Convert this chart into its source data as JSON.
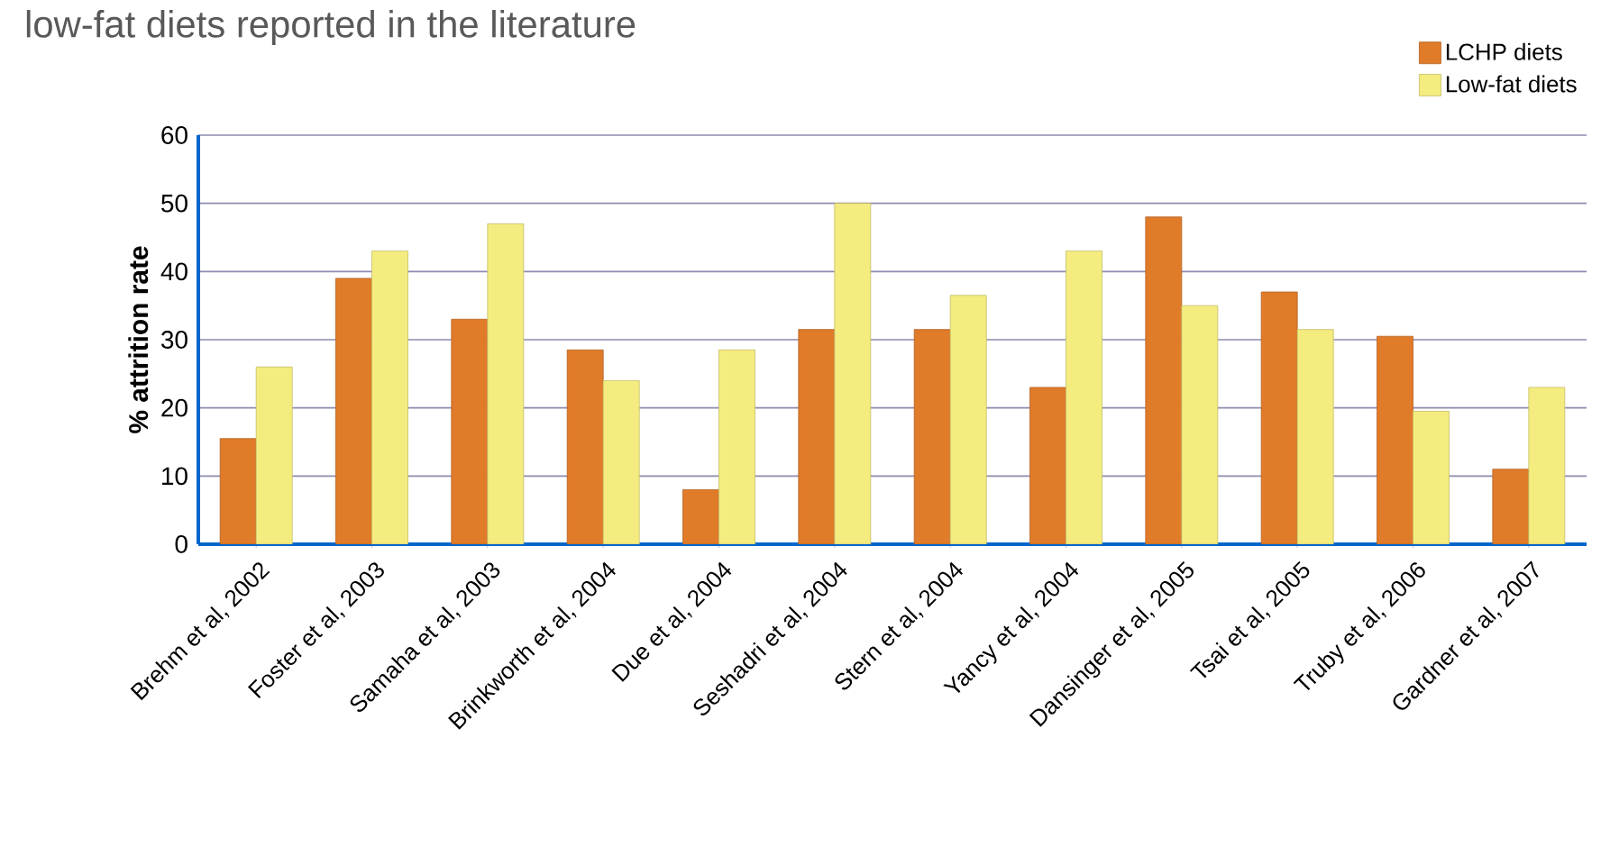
{
  "chart_data": {
    "type": "bar",
    "title": "low-fat diets reported in the literature",
    "ylabel": "% attrition rate",
    "categories": [
      "Brehm et al, 2002",
      "Foster et al, 2003",
      "Samaha et al, 2003",
      "Brinkworth et al, 2004",
      "Due et al, 2004",
      "Seshadri et al, 2004",
      "Stern et al, 2004",
      "Yancy et al, 2004",
      "Dansinger et al, 2005",
      "Tsai et al, 2005",
      "Truby et al, 2006",
      "Gardner et al, 2007"
    ],
    "series": [
      {
        "name": "LCHP diets",
        "color": "#e07b2a",
        "values": [
          15.5,
          39,
          33,
          28.5,
          8,
          31.5,
          31.5,
          23,
          48,
          37,
          30.5,
          11
        ]
      },
      {
        "name": "Low-fat diets",
        "color": "#f5ec80",
        "values": [
          26,
          43,
          47,
          24,
          28.5,
          50,
          36.5,
          43,
          35,
          31.5,
          19.5,
          23
        ]
      }
    ],
    "ylim": [
      0,
      60
    ],
    "yticks": [
      0,
      10,
      20,
      30,
      40,
      50,
      60
    ],
    "grid": "y",
    "legend": "top right"
  }
}
